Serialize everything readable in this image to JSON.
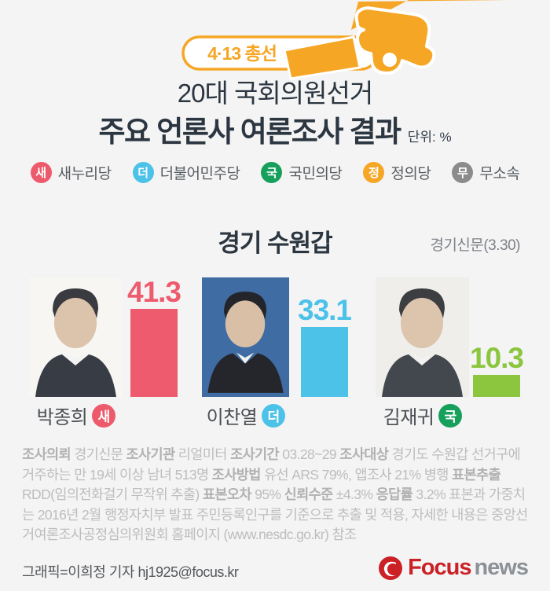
{
  "header": {
    "badge_label": "4·13 총선",
    "accent_color": "#f6a625"
  },
  "title": {
    "line1": "20대 국회의원선거",
    "line2": "주요 언론사 여론조사 결과",
    "unit": "단위: %"
  },
  "legend": {
    "items": [
      {
        "badge": "새",
        "label": "새누리당",
        "color": "#ed5a6c"
      },
      {
        "badge": "더",
        "label": "더불어민주당",
        "color": "#4cc2e9"
      },
      {
        "badge": "국",
        "label": "국민의당",
        "color": "#17a05c"
      },
      {
        "badge": "정",
        "label": "정의당",
        "color": "#f6a625"
      },
      {
        "badge": "무",
        "label": "무소속",
        "color": "#8b8b8b"
      }
    ]
  },
  "section": {
    "region": "경기 수원갑",
    "source": "경기신문(3.30)"
  },
  "chart_data": {
    "type": "bar",
    "title": "경기 수원갑",
    "subtitle": "20대 국회의원선거 주요 언론사 여론조사 결과",
    "source": "경기신문(3.30)",
    "unit": "%",
    "categories": [
      "박종희",
      "이찬열",
      "김재귀"
    ],
    "parties": [
      "새누리당",
      "더불어민주당",
      "국민의당"
    ],
    "values": [
      41.3,
      33.1,
      10.3
    ],
    "bar_colors": [
      "#ee5b6e",
      "#4cc2e9",
      "#8cc63f"
    ],
    "value_labels": [
      "41.3",
      "33.1",
      "10.3"
    ],
    "legend_position": "top",
    "grid": false
  },
  "candidates": [
    {
      "name": "박종희",
      "party_badge": "새",
      "value": "41.3",
      "badge_color": "#ed5a6c",
      "photo_bg": "#f7f6f3"
    },
    {
      "name": "이찬열",
      "party_badge": "더",
      "value": "33.1",
      "badge_color": "#4cc2e9",
      "photo_bg": "#3f6ca3"
    },
    {
      "name": "김재귀",
      "party_badge": "국",
      "value": "10.3",
      "badge_color": "#17a05c",
      "photo_bg": "#efeeea"
    }
  ],
  "footnote": {
    "segments": [
      {
        "text": "조사의뢰 ",
        "bold": true
      },
      {
        "text": "경기신문 ",
        "bold": false
      },
      {
        "text": "조사기관 ",
        "bold": true
      },
      {
        "text": "리얼미터 ",
        "bold": false
      },
      {
        "text": "조사기간 ",
        "bold": true
      },
      {
        "text": "03.28~29 ",
        "bold": false
      },
      {
        "text": "조사대상 ",
        "bold": true
      },
      {
        "text": "경기도 수원갑 선거구에 거주하는 만 19세 이상 남녀 513명 ",
        "bold": false
      },
      {
        "text": "조사방법 ",
        "bold": true
      },
      {
        "text": "유선 ARS 79%, 앱조사 21% 병행 ",
        "bold": false
      },
      {
        "text": "표본추출 ",
        "bold": true
      },
      {
        "text": "RDD(임의전화걸기 무작위 추출) ",
        "bold": false
      },
      {
        "text": "표본오차 ",
        "bold": true
      },
      {
        "text": "95% ",
        "bold": false
      },
      {
        "text": "신뢰수준 ",
        "bold": true
      },
      {
        "text": "±4.3% ",
        "bold": false
      },
      {
        "text": "응답률 ",
        "bold": true
      },
      {
        "text": "3.2% ",
        "bold": false
      },
      {
        "text": "표본과 가중치는 2016년 2월 행정자치부 발표 주민등록인구를 기준으로 추출 및 적용, 자세한 내용은 중앙선거여론조사공정심의위원회 홈페이지 (www.nesdc.go.kr) 참조",
        "bold": false
      }
    ]
  },
  "bottombar": {
    "credit": "그래픽=이희정 기자 hj1925@focus.kr",
    "logo_focus": "Focus",
    "logo_news": "news"
  }
}
